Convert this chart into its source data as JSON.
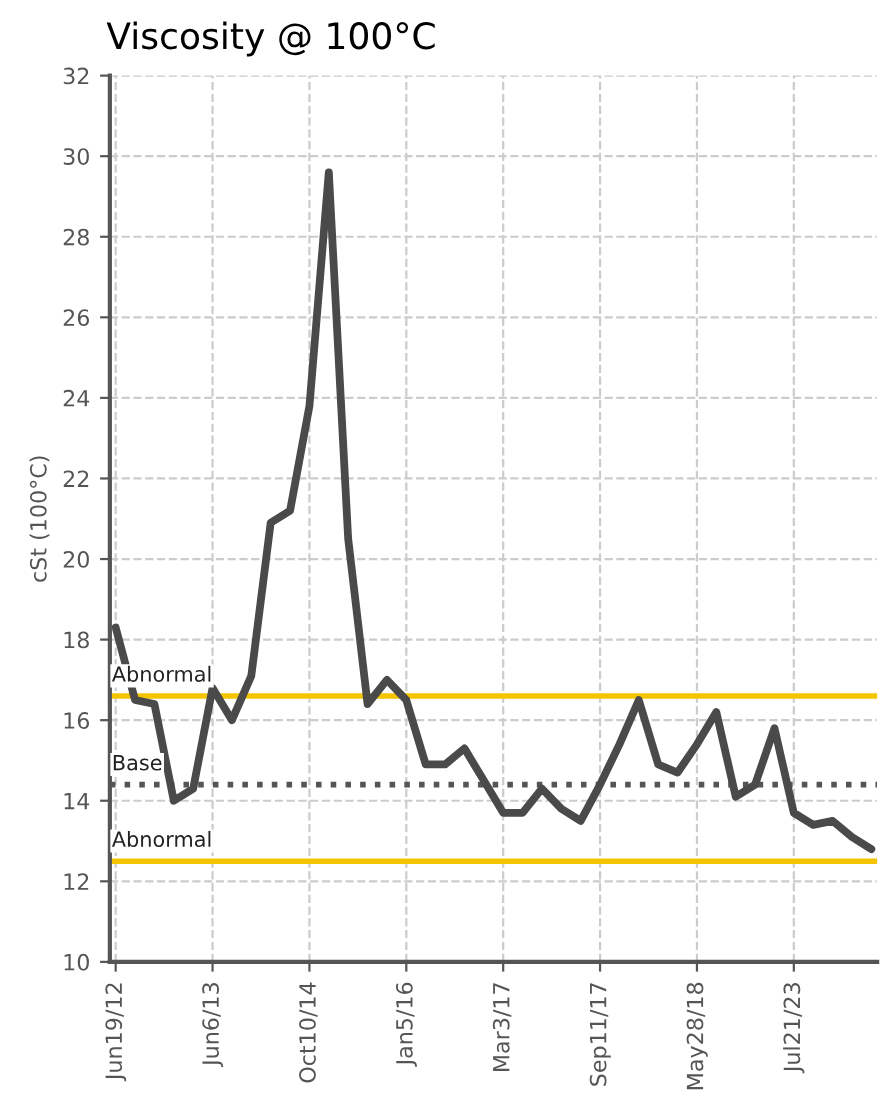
{
  "chart_data": {
    "type": "line",
    "title": "Viscosity @ 100°C",
    "ylabel": "cSt (100°C)",
    "categories": [
      "Jun19/12",
      null,
      null,
      null,
      null,
      "Jun6/13",
      null,
      null,
      null,
      null,
      "Oct10/14",
      null,
      null,
      null,
      null,
      "Jan5/16",
      null,
      null,
      null,
      null,
      "Mar3/17",
      null,
      null,
      null,
      null,
      "Sep11/17",
      null,
      null,
      null,
      null,
      "May28/18",
      null,
      null,
      null,
      null,
      "Jul21/23",
      null,
      null,
      null,
      null
    ],
    "series": [
      {
        "color": "#4a4a4a",
        "values": [
          18.3,
          16.5,
          16.4,
          14.0,
          14.3,
          16.8,
          16.0,
          17.1,
          20.9,
          21.2,
          23.8,
          29.6,
          20.5,
          16.4,
          17.0,
          16.5,
          14.9,
          14.9,
          15.3,
          14.5,
          13.7,
          13.7,
          14.3,
          13.8,
          13.5,
          14.4,
          15.4,
          16.5,
          14.9,
          14.7,
          15.4,
          16.2,
          14.1,
          14.4,
          15.8,
          13.7,
          13.4,
          13.5,
          13.1,
          12.8
        ]
      }
    ],
    "ylim": [
      10,
      32
    ],
    "yticks": [
      10,
      12,
      14,
      16,
      18,
      20,
      22,
      24,
      26,
      28,
      30,
      32
    ],
    "grid": true,
    "line_style": "solid",
    "marker": "none",
    "ref_lines": [
      {
        "axis": "y",
        "value": 16.6,
        "label": "Abnormal",
        "color": "#f5c400",
        "line_style": "solid"
      },
      {
        "axis": "y",
        "value": 14.4,
        "label": "Base",
        "color": "#555555",
        "line_style": "dotted"
      },
      {
        "axis": "y",
        "value": 12.5,
        "label": "Abnormal",
        "color": "#f5c400",
        "line_style": "solid"
      }
    ]
  }
}
